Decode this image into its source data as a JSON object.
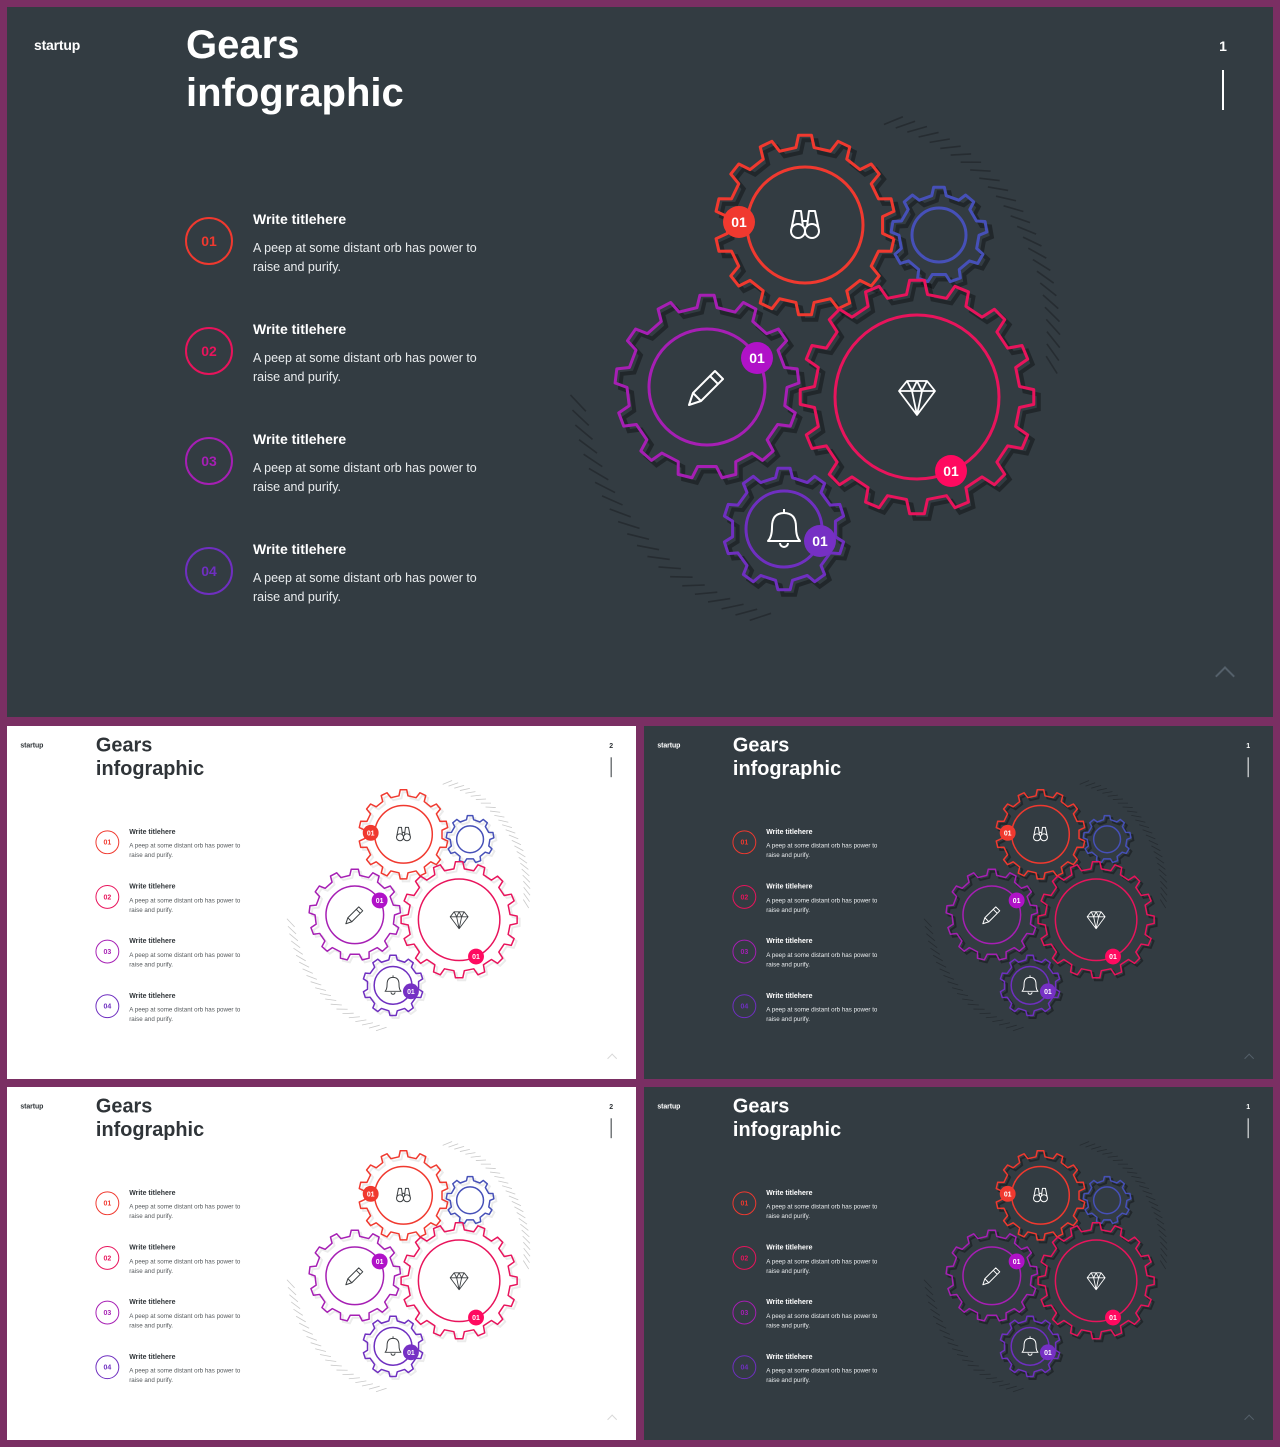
{
  "colors": {
    "red": "#f0392f",
    "crimson": "#e8145c",
    "magenta": "#a61fb4",
    "purple": "#6f2fc0",
    "blue": "#4650b8",
    "frame": "#7a2f63",
    "dark_bg": "#333c42"
  },
  "slides": [
    {
      "theme": "dark",
      "brand": "startup",
      "title_line1": "Gears",
      "title_line2": "infographic",
      "page_number": "1",
      "items": [
        {
          "number": "01",
          "title": "Write titlehere",
          "description_line1": "A peep at some distant orb has power to",
          "description_line2": "raise and purify."
        },
        {
          "number": "02",
          "title": "Write titlehere",
          "description_line1": "A peep at some distant orb has power to",
          "description_line2": "raise and purify."
        },
        {
          "number": "03",
          "title": "Write titlehere",
          "description_line1": "A peep at some distant orb has power to",
          "description_line2": "raise and purify."
        },
        {
          "number": "04",
          "title": "Write titlehere",
          "description_line1": "A peep at some distant orb has power to",
          "description_line2": "raise and purify."
        }
      ],
      "gear_badges": [
        "01",
        "01",
        "01",
        "01"
      ]
    },
    {
      "theme": "light",
      "brand": "startup",
      "title_line1": "Gears",
      "title_line2": "infographic",
      "page_number": "2",
      "items": [
        {
          "number": "01",
          "title": "Write titlehere",
          "description_line1": "A peep at some distant orb has power to",
          "description_line2": "raise and purify."
        },
        {
          "number": "02",
          "title": "Write titlehere",
          "description_line1": "A peep at some distant orb has power to",
          "description_line2": "raise and purify."
        },
        {
          "number": "03",
          "title": "Write titlehere",
          "description_line1": "A peep at some distant orb has power to",
          "description_line2": "raise and purify."
        },
        {
          "number": "04",
          "title": "Write titlehere",
          "description_line1": "A peep at some distant orb has power to",
          "description_line2": "raise and purify."
        }
      ],
      "gear_badges": [
        "01",
        "01",
        "01",
        "01"
      ]
    },
    {
      "theme": "dark",
      "brand": "startup",
      "title_line1": "Gears",
      "title_line2": "infographic",
      "page_number": "1",
      "items": [
        {
          "number": "01",
          "title": "Write titlehere",
          "description_line1": "A peep at some distant orb has power to",
          "description_line2": "raise and purify."
        },
        {
          "number": "02",
          "title": "Write titlehere",
          "description_line1": "A peep at some distant orb has power to",
          "description_line2": "raise and purify."
        },
        {
          "number": "03",
          "title": "Write titlehere",
          "description_line1": "A peep at some distant orb has power to",
          "description_line2": "raise and purify."
        },
        {
          "number": "04",
          "title": "Write titlehere",
          "description_line1": "A peep at some distant orb has power to",
          "description_line2": "raise and purify."
        }
      ],
      "gear_badges": [
        "01",
        "01",
        "01",
        "01"
      ]
    },
    {
      "theme": "light",
      "brand": "startup",
      "title_line1": "Gears",
      "title_line2": "infographic",
      "page_number": "2",
      "items": [
        {
          "number": "01",
          "title": "Write titlehere",
          "description_line1": "A peep at some distant orb has power to",
          "description_line2": "raise and purify."
        },
        {
          "number": "02",
          "title": "Write titlehere",
          "description_line1": "A peep at some distant orb has power to",
          "description_line2": "raise and purify."
        },
        {
          "number": "03",
          "title": "Write titlehere",
          "description_line1": "A peep at some distant orb has power to",
          "description_line2": "raise and purify."
        },
        {
          "number": "04",
          "title": "Write titlehere",
          "description_line1": "A peep at some distant orb has power to",
          "description_line2": "raise and purify."
        }
      ],
      "gear_badges": [
        "01",
        "01",
        "01",
        "01"
      ]
    },
    {
      "theme": "dark",
      "brand": "startup",
      "title_line1": "Gears",
      "title_line2": "infographic",
      "page_number": "1",
      "items": [
        {
          "number": "01",
          "title": "Write titlehere",
          "description_line1": "A peep at some distant orb has power to",
          "description_line2": "raise and purify."
        },
        {
          "number": "02",
          "title": "Write titlehere",
          "description_line1": "A peep at some distant orb has power to",
          "description_line2": "raise and purify."
        },
        {
          "number": "03",
          "title": "Write titlehere",
          "description_line1": "A peep at some distant orb has power to",
          "description_line2": "raise and purify."
        },
        {
          "number": "04",
          "title": "Write titlehere",
          "description_line1": "A peep at some distant orb has power to",
          "description_line2": "raise and purify."
        }
      ],
      "gear_badges": [
        "01",
        "01",
        "01",
        "01"
      ]
    }
  ]
}
